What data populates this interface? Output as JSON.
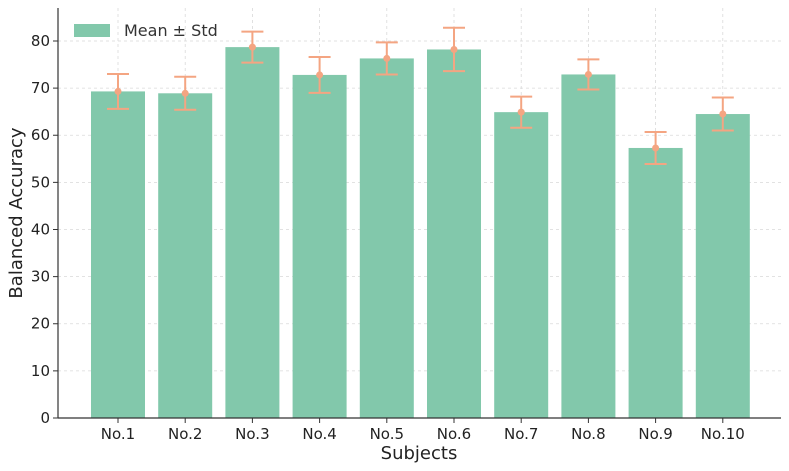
{
  "chart_data": {
    "type": "bar",
    "title": "",
    "xlabel": "Subjects",
    "ylabel": "Balanced Accuracy",
    "categories": [
      "No.1",
      "No.2",
      "No.3",
      "No.4",
      "No.5",
      "No.6",
      "No.7",
      "No.8",
      "No.9",
      "No.10"
    ],
    "series": [
      {
        "name": "Mean ± Std",
        "values": [
          69.3,
          68.9,
          78.7,
          72.8,
          76.3,
          78.2,
          64.9,
          72.9,
          57.3,
          64.5
        ],
        "std": [
          3.7,
          3.5,
          3.3,
          3.8,
          3.4,
          4.6,
          3.3,
          3.2,
          3.4,
          3.5
        ]
      }
    ],
    "ylim": [
      0,
      87
    ],
    "yticks": [
      0,
      10,
      20,
      30,
      40,
      50,
      60,
      70,
      80
    ],
    "grid": true,
    "legend_position": "top-left",
    "colors": {
      "bar": "#82c8ab",
      "error": "#f4a582",
      "axis": "#333333",
      "grid": "#d9d9d9"
    }
  }
}
